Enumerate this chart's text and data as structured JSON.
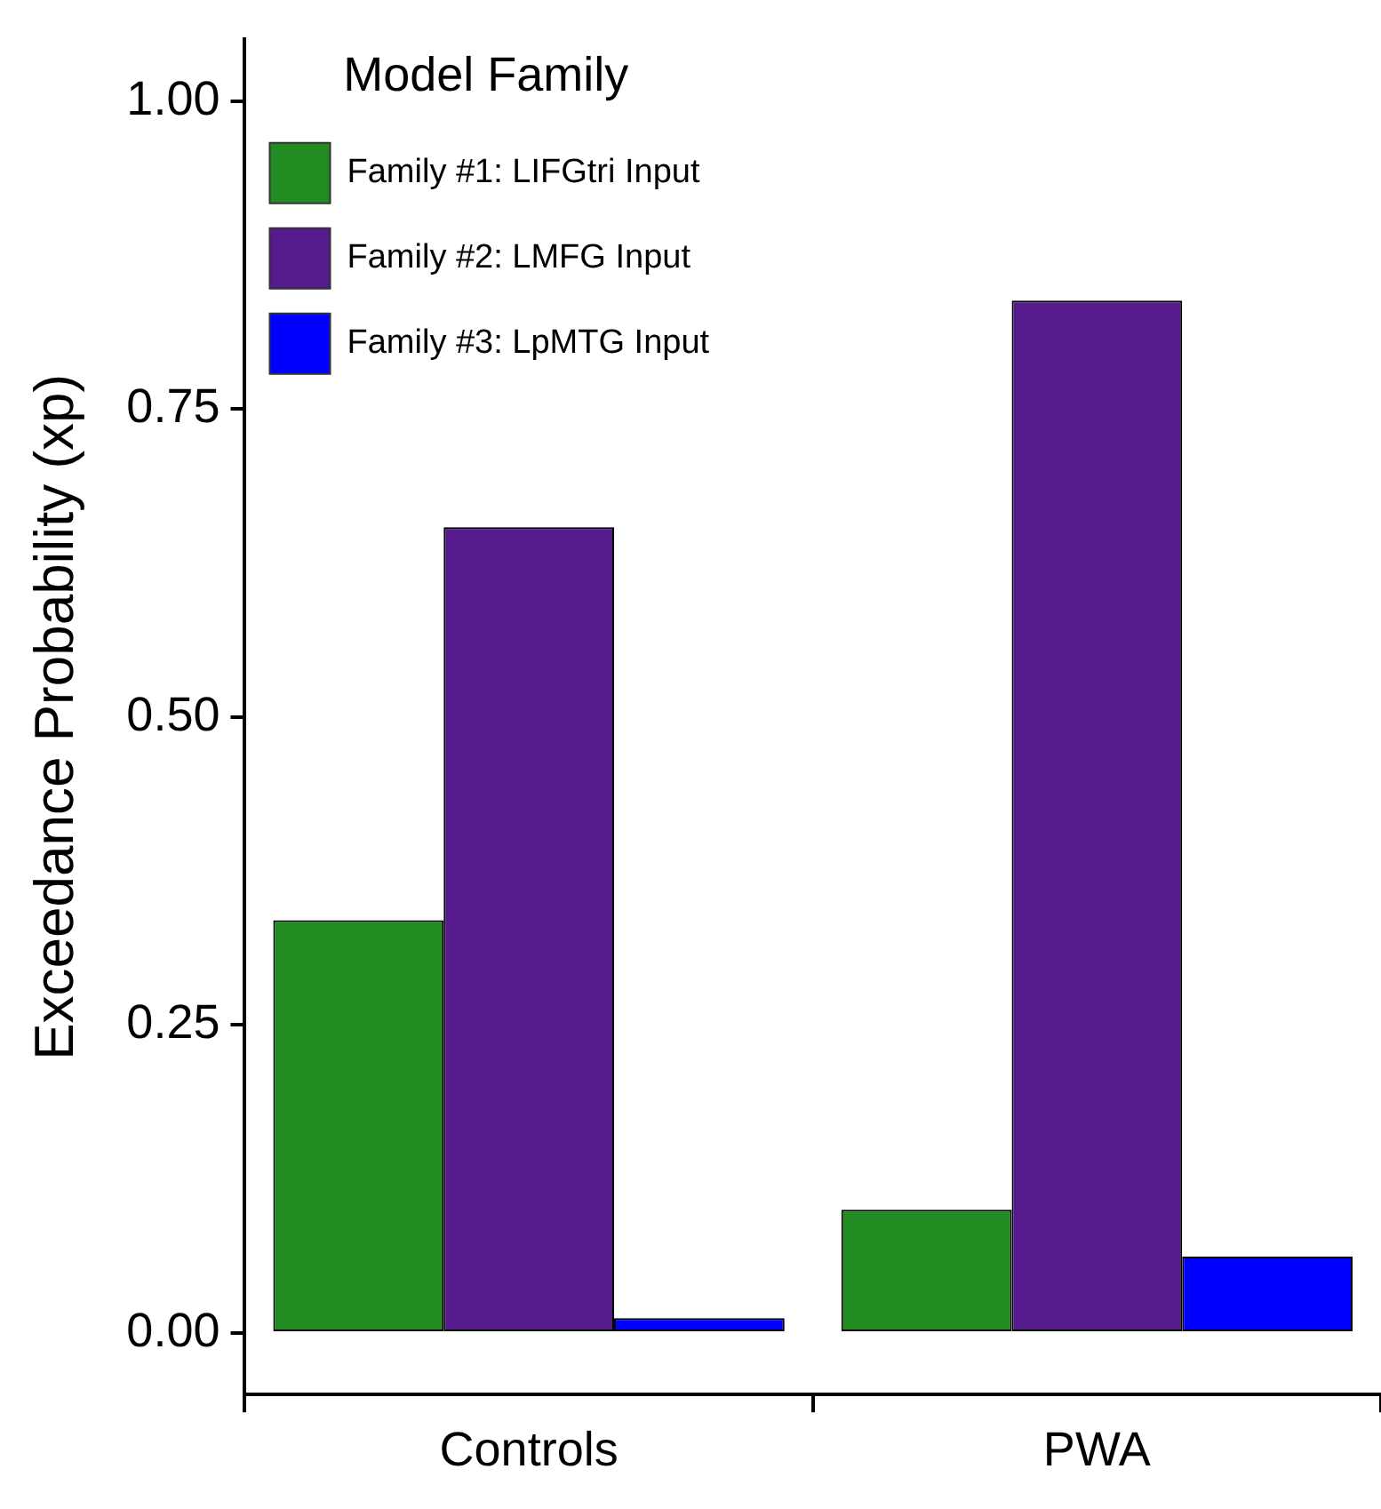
{
  "chart_data": {
    "type": "bar",
    "ylabel": "Exceedance Probability (xp)",
    "legend_title": "Model Family",
    "categories": [
      "Controls",
      "PWA"
    ],
    "series": [
      {
        "name": "Family #1: LIFGtri Input",
        "color": "#228b22",
        "values": [
          0.335,
          0.1
        ]
      },
      {
        "name": "Family #2: LMFG Input",
        "color": "#551a8b",
        "values": [
          0.654,
          0.838
        ]
      },
      {
        "name": "Family #3: LpMTG Input",
        "color": "#0000ff",
        "values": [
          0.012,
          0.062
        ]
      }
    ],
    "ylim": [
      -0.05,
      1.05
    ],
    "yticks": [
      {
        "value": 0,
        "label": "0.00"
      },
      {
        "value": 0.25,
        "label": "0.25"
      },
      {
        "value": 0.5,
        "label": "0.50"
      },
      {
        "value": 0.75,
        "label": "0.75"
      },
      {
        "value": 1,
        "label": "1.00"
      }
    ],
    "grid": false,
    "legend": "top left"
  }
}
